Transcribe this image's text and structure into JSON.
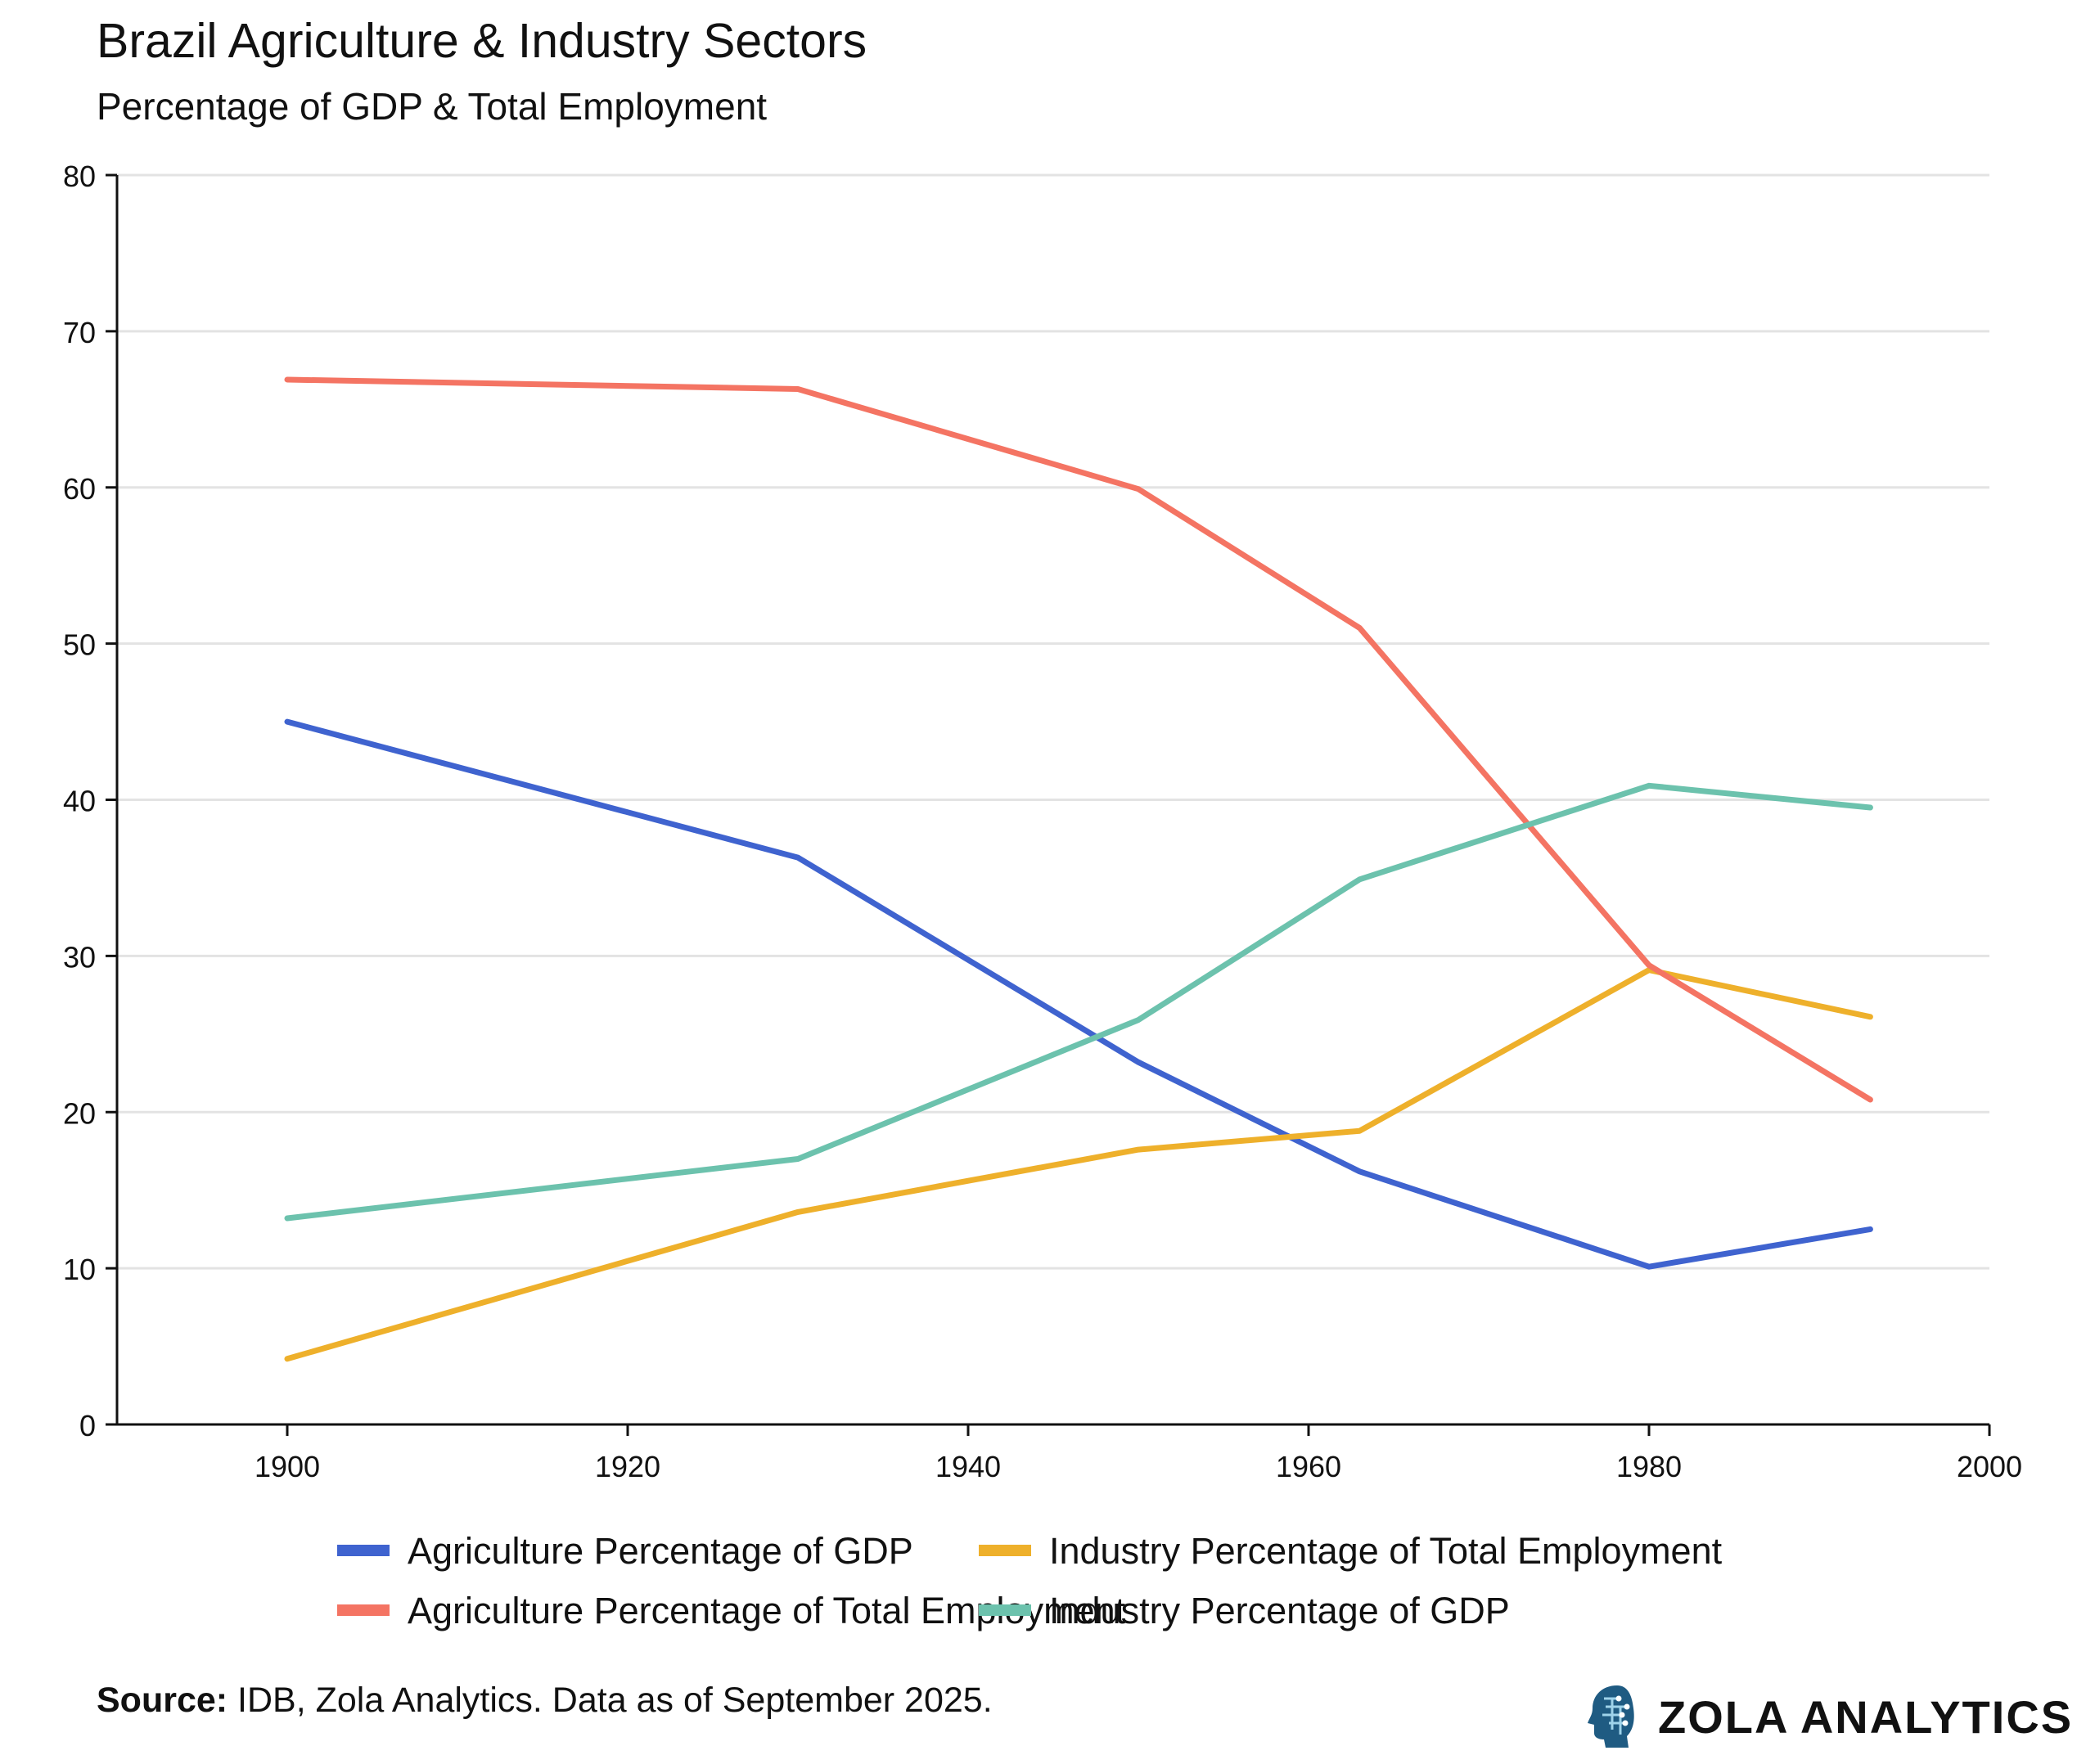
{
  "colors": {
    "agri_gdp": "#3f63cf",
    "industry_emp": "#eeb02b",
    "agri_emp": "#f47463",
    "industry_gdp": "#6cc2ad",
    "gridline": "#e3e3e3",
    "axis": "#111111",
    "brand_icon": "#1f5b82"
  },
  "footer": {
    "source_label": "Source:",
    "source_text": " IDB, Zola Analytics. Data as of September 2025."
  },
  "brand": {
    "name": "ZOLA ANALYTICS",
    "icon": "head-circuit-icon"
  },
  "chart_data": {
    "type": "line",
    "title": "Brazil Agriculture & Industry Sectors",
    "subtitle": "Percentage of GDP & Total Employment",
    "xlabel": "",
    "ylabel": "",
    "xlim": [
      1890,
      2000
    ],
    "ylim": [
      0,
      80
    ],
    "x_ticks": [
      1900,
      1920,
      1940,
      1960,
      1980,
      2000
    ],
    "y_ticks": [
      0,
      10,
      20,
      30,
      40,
      50,
      60,
      70,
      80
    ],
    "grid": true,
    "legend_position": "bottom",
    "series": [
      {
        "name": "Agriculture Percentage of GDP",
        "color_key": "agri_gdp",
        "x": [
          1900,
          1930,
          1950,
          1963,
          1980,
          1993
        ],
        "values": [
          45,
          36.3,
          23.2,
          16.2,
          10.1,
          12.5
        ]
      },
      {
        "name": "Industry Percentage of Total Employment",
        "color_key": "industry_emp",
        "x": [
          1900,
          1930,
          1950,
          1963,
          1980,
          1993
        ],
        "values": [
          4.2,
          13.6,
          17.6,
          18.8,
          29.1,
          26.1
        ]
      },
      {
        "name": "Agriculture Percentage of Total Employment",
        "color_key": "agri_emp",
        "x": [
          1900,
          1930,
          1950,
          1963,
          1980,
          1993
        ],
        "values": [
          66.9,
          66.3,
          59.9,
          51,
          29.4,
          20.8
        ]
      },
      {
        "name": "Industry Percentage of GDP",
        "color_key": "industry_gdp",
        "x": [
          1900,
          1930,
          1950,
          1963,
          1980,
          1993
        ],
        "values": [
          13.2,
          17,
          25.9,
          34.9,
          40.9,
          39.5
        ]
      }
    ]
  }
}
